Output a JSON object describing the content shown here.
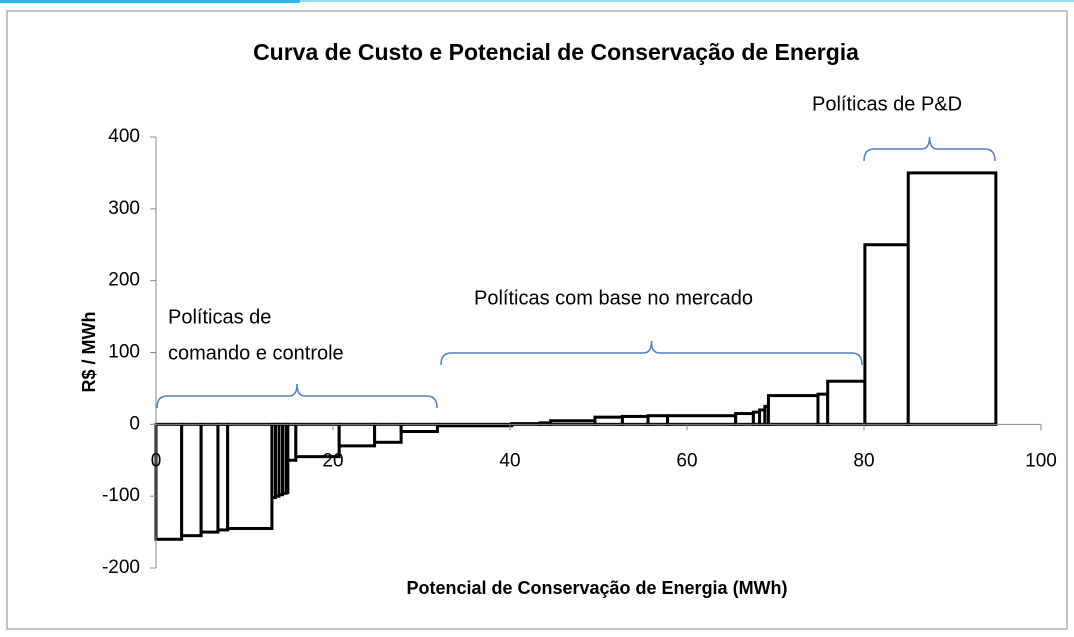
{
  "chart_data": {
    "type": "histogram",
    "title": "Curva de Custo e Potencial de Conservação de Energia",
    "x_label": "Potencial de Conservação de Energia (MWh)",
    "y_label": "R$ / MWh",
    "bins": [
      0,
      2.9,
      5.1,
      7.0,
      8.1,
      13.1,
      13.5,
      13.9,
      14.3,
      14.7,
      14.9,
      15.8,
      20.7,
      24.7,
      27.7,
      31.8,
      40.2,
      43.4,
      44.6,
      49.6,
      52.7,
      55.6,
      57.8,
      65.5,
      67.5,
      68.2,
      68.8,
      69.2,
      74.8,
      75.9,
      80.1,
      85.0,
      94.9
    ],
    "values": [
      -160,
      -155,
      -150,
      -147,
      -145,
      -102,
      -100,
      -98,
      -96,
      -95,
      -50,
      -45,
      -30,
      -25,
      -10,
      -2,
      1,
      2,
      5,
      10,
      11,
      12,
      12,
      15,
      17,
      20,
      25,
      40,
      42,
      60,
      250,
      350
    ],
    "color": "#ffffff",
    "edge_color": "#000000",
    "xlim": [
      0,
      100
    ],
    "xticks": [
      0,
      20,
      40,
      60,
      80,
      100
    ],
    "ylim": [
      -200,
      400
    ],
    "yticks": [
      -200,
      -100,
      0,
      100,
      200,
      300,
      400
    ],
    "annotations": [
      {
        "lines": [
          "Políticas de",
          "comando e controle"
        ]
      },
      {
        "lines": [
          "Políticas com base no mercado"
        ]
      },
      {
        "lines": [
          "Políticas de P&D"
        ]
      }
    ]
  }
}
